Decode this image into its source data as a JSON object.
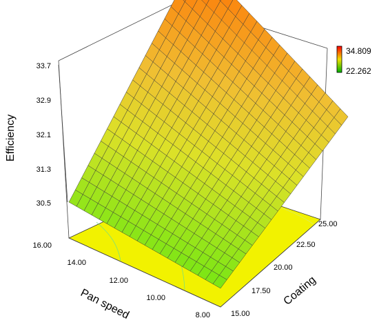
{
  "chart_data": {
    "type": "surface3d",
    "title": "",
    "xlabel": "Pan speed",
    "ylabel": "Coating",
    "zlabel": "Efficiency",
    "x_ticks": [
      "16.00",
      "14.00",
      "12.00",
      "10.00",
      "8.00"
    ],
    "y_ticks": [
      "15.00",
      "17.50",
      "20.00",
      "22.50",
      "25.00"
    ],
    "z_ticks": [
      "30.5",
      "31.3",
      "32.1",
      "32.9",
      "33.7"
    ],
    "xlim": [
      8,
      16
    ],
    "ylim": [
      15,
      25
    ],
    "zlim": [
      30.5,
      33.7
    ],
    "surface_corners": [
      {
        "pan_speed": 16,
        "coating": 15,
        "efficiency": 30.5
      },
      {
        "pan_speed": 16,
        "coating": 25,
        "efficiency": 34.8
      },
      {
        "pan_speed": 8,
        "coating": 15,
        "efficiency": 30.1
      },
      {
        "pan_speed": 8,
        "coating": 25,
        "efficiency": 32.7
      }
    ],
    "colorbar": {
      "max_label": "34.809",
      "min_label": "22.262",
      "max_color": "#ff0000",
      "min_color": "#00a000"
    },
    "contour_plane_color": "#f2f200",
    "grid": true
  }
}
